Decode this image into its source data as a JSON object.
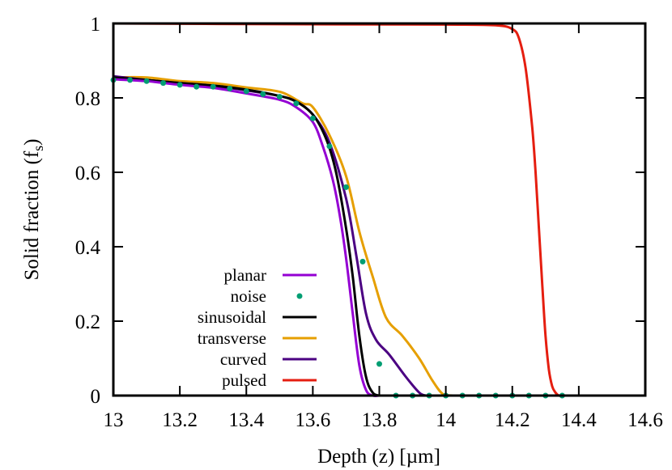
{
  "chart_data": {
    "type": "line",
    "title": "",
    "xlabel": "Depth (z) [µm]",
    "ylabel": "Solid fraction (f",
    "ylabel_subscript": "s",
    "ylabel_close": ")",
    "xlim": [
      13,
      14.6
    ],
    "ylim": [
      0,
      1
    ],
    "grid": false,
    "legend_position": "inside lower left-center",
    "x_ticks": [
      "13",
      "13.2",
      "13.4",
      "13.6",
      "13.8",
      "14",
      "14.2",
      "14.4",
      "14.6"
    ],
    "x_tick_values": [
      13,
      13.2,
      13.4,
      13.6,
      13.8,
      14,
      14.2,
      14.4,
      14.6
    ],
    "y_ticks": [
      "0",
      "0.2",
      "0.4",
      "0.6",
      "0.8",
      "1"
    ],
    "y_tick_values": [
      0,
      0.2,
      0.4,
      0.6,
      0.8,
      1
    ],
    "series": [
      {
        "name": "planar",
        "style": "line",
        "color": "#9400d3",
        "x": [
          13.0,
          13.1,
          13.2,
          13.3,
          13.4,
          13.5,
          13.55,
          13.6,
          13.63,
          13.66,
          13.68,
          13.7,
          13.72,
          13.74,
          13.76,
          13.78,
          13.8
        ],
        "y": [
          0.85,
          0.845,
          0.835,
          0.827,
          0.812,
          0.795,
          0.775,
          0.735,
          0.67,
          0.58,
          0.49,
          0.37,
          0.22,
          0.08,
          0.015,
          0.0,
          0.0
        ]
      },
      {
        "name": "noise",
        "style": "points",
        "color": "#009e73",
        "x": [
          13.0,
          13.05,
          13.1,
          13.15,
          13.2,
          13.25,
          13.3,
          13.35,
          13.4,
          13.45,
          13.5,
          13.55,
          13.6,
          13.65,
          13.7,
          13.75,
          13.8,
          13.85,
          13.9,
          13.95,
          14.0,
          14.05,
          14.1,
          14.15,
          14.2,
          14.25,
          14.3,
          14.35
        ],
        "y": [
          0.848,
          0.848,
          0.845,
          0.84,
          0.835,
          0.83,
          0.83,
          0.825,
          0.818,
          0.81,
          0.803,
          0.785,
          0.745,
          0.67,
          0.56,
          0.36,
          0.085,
          0.0,
          0.0,
          0.0,
          0.0,
          0.0,
          0.0,
          0.0,
          0.0,
          0.0,
          0.0,
          0.0
        ]
      },
      {
        "name": "sinusoidal",
        "style": "line",
        "color": "#000000",
        "x": [
          13.0,
          13.1,
          13.2,
          13.3,
          13.4,
          13.5,
          13.55,
          13.6,
          13.64,
          13.67,
          13.7,
          13.72,
          13.74,
          13.76,
          13.78,
          13.8
        ],
        "y": [
          0.855,
          0.848,
          0.84,
          0.833,
          0.822,
          0.805,
          0.79,
          0.755,
          0.69,
          0.6,
          0.45,
          0.32,
          0.16,
          0.05,
          0.008,
          0.0
        ]
      },
      {
        "name": "transverse",
        "style": "line",
        "color": "#e69f00",
        "x": [
          13.0,
          13.1,
          13.2,
          13.3,
          13.4,
          13.48,
          13.52,
          13.57,
          13.6,
          13.65,
          13.7,
          13.74,
          13.78,
          13.82,
          13.87,
          13.92,
          13.96,
          13.99,
          14.02
        ],
        "y": [
          0.855,
          0.855,
          0.845,
          0.84,
          0.828,
          0.82,
          0.81,
          0.785,
          0.775,
          0.7,
          0.59,
          0.44,
          0.32,
          0.21,
          0.16,
          0.1,
          0.04,
          0.005,
          0.0
        ]
      },
      {
        "name": "curved",
        "style": "line",
        "color": "#4b0082",
        "x": [
          13.0,
          13.1,
          13.2,
          13.3,
          13.4,
          13.5,
          13.55,
          13.6,
          13.65,
          13.7,
          13.73,
          13.76,
          13.79,
          13.83,
          13.88,
          13.92,
          13.94
        ],
        "y": [
          0.858,
          0.848,
          0.84,
          0.832,
          0.82,
          0.805,
          0.79,
          0.755,
          0.68,
          0.53,
          0.38,
          0.22,
          0.15,
          0.11,
          0.05,
          0.008,
          0.0
        ]
      },
      {
        "name": "pulsed",
        "style": "line",
        "color": "#e51e10",
        "x": [
          13.0,
          13.5,
          14.0,
          14.15,
          14.2,
          14.22,
          14.24,
          14.26,
          14.27,
          14.28,
          14.29,
          14.3,
          14.31,
          14.32,
          14.33,
          14.34,
          14.35
        ],
        "y": [
          1.0,
          0.998,
          0.997,
          0.995,
          0.985,
          0.96,
          0.88,
          0.72,
          0.6,
          0.45,
          0.3,
          0.16,
          0.07,
          0.025,
          0.008,
          0.0,
          0.0
        ]
      }
    ]
  },
  "legend": {
    "items": [
      {
        "label": "planar",
        "color": "#9400d3",
        "style": "line"
      },
      {
        "label": "noise",
        "color": "#009e73",
        "style": "point"
      },
      {
        "label": "sinusoidal",
        "color": "#000000",
        "style": "line"
      },
      {
        "label": "transverse",
        "color": "#e69f00",
        "style": "line"
      },
      {
        "label": "curved",
        "color": "#4b0082",
        "style": "line"
      },
      {
        "label": "pulsed",
        "color": "#e51e10",
        "style": "line"
      }
    ]
  }
}
